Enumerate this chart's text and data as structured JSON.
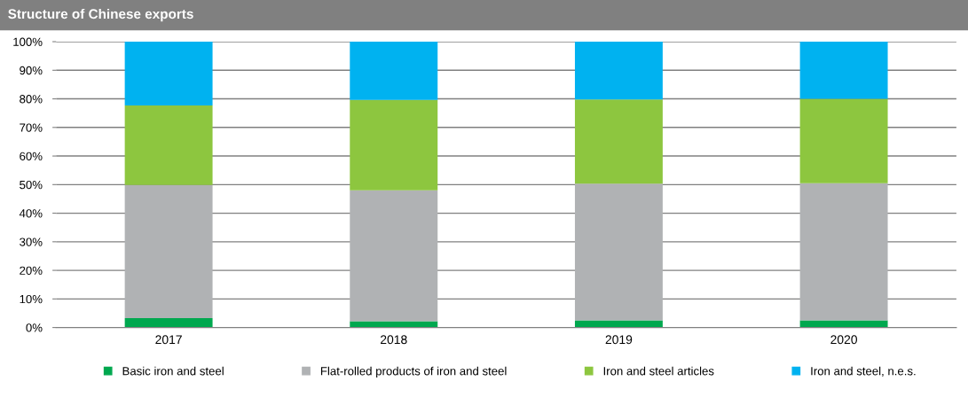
{
  "chart_data": {
    "type": "bar",
    "title": "Structure of Chinese exports",
    "stacked": true,
    "categories": [
      "2017",
      "2018",
      "2019",
      "2020"
    ],
    "series": [
      {
        "name": "Basic iron and steel",
        "color": "#00a84f",
        "values": [
          3.3,
          2.2,
          2.5,
          2.5
        ]
      },
      {
        "name": "Flat-rolled products of iron and steel",
        "color": "#b0b2b4",
        "values": [
          46.6,
          45.8,
          47.8,
          48.0
        ]
      },
      {
        "name": "Iron and steel articles",
        "color": "#8dc63f",
        "values": [
          27.8,
          31.6,
          29.5,
          29.5
        ]
      },
      {
        "name": "Iron and steel, n.e.s.",
        "color": "#00b2f0",
        "values": [
          22.3,
          20.4,
          20.2,
          20.0
        ]
      }
    ],
    "ylim": [
      0,
      100
    ],
    "yticks": [
      {
        "value": 0,
        "label": "0%"
      },
      {
        "value": 10,
        "label": "10%"
      },
      {
        "value": 20,
        "label": "20%"
      },
      {
        "value": 30,
        "label": "30%"
      },
      {
        "value": 40,
        "label": "40%"
      },
      {
        "value": 50,
        "label": "50%"
      },
      {
        "value": 60,
        "label": "60%"
      },
      {
        "value": 70,
        "label": "70%"
      },
      {
        "value": 80,
        "label": "80%"
      },
      {
        "value": 90,
        "label": "90%"
      },
      {
        "value": 100,
        "label": "100%"
      }
    ],
    "grid": "y",
    "legend": "bottom"
  }
}
